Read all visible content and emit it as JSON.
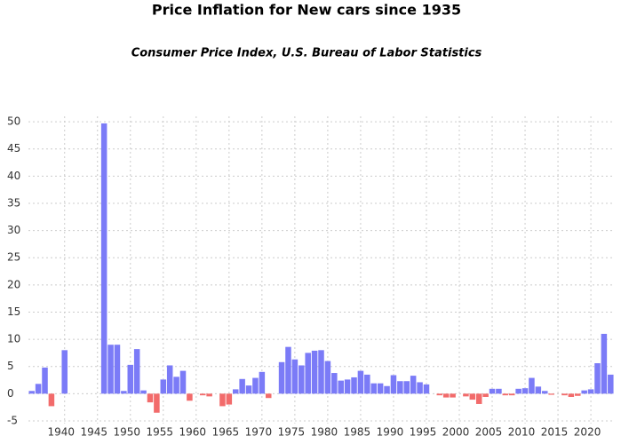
{
  "chart_data": {
    "type": "bar",
    "title": "Price Inflation for New cars since 1935",
    "subtitle": "Consumer Price Index, U.S. Bureau of Labor Statistics",
    "x": [
      1935,
      1936,
      1937,
      1938,
      1939,
      1940,
      1941,
      1942,
      1943,
      1944,
      1945,
      1946,
      1947,
      1948,
      1949,
      1950,
      1951,
      1952,
      1953,
      1954,
      1955,
      1956,
      1957,
      1958,
      1959,
      1960,
      1961,
      1962,
      1963,
      1964,
      1965,
      1966,
      1967,
      1968,
      1969,
      1970,
      1971,
      1972,
      1973,
      1974,
      1975,
      1976,
      1977,
      1978,
      1979,
      1980,
      1981,
      1982,
      1983,
      1984,
      1985,
      1986,
      1987,
      1988,
      1989,
      1990,
      1991,
      1992,
      1993,
      1994,
      1995,
      1996,
      1997,
      1998,
      1999,
      2000,
      2001,
      2002,
      2003,
      2004,
      2005,
      2006,
      2007,
      2008,
      2009,
      2010,
      2011,
      2012,
      2013,
      2014,
      2015,
      2016,
      2017,
      2018,
      2019,
      2020,
      2021,
      2022,
      2023
    ],
    "values": [
      0.5,
      1.8,
      4.8,
      -2.3,
      0,
      8,
      null,
      null,
      null,
      null,
      null,
      49.7,
      9,
      9,
      0.5,
      5.3,
      8.2,
      0.6,
      -1.6,
      -3.5,
      2.6,
      5.2,
      3.1,
      4.2,
      -1.3,
      0,
      -0.3,
      -0.5,
      0,
      -2.3,
      -2,
      0.8,
      2.7,
      1.5,
      2.9,
      4,
      -0.8,
      0,
      5.8,
      8.6,
      6.3,
      5.2,
      7.5,
      7.9,
      8,
      6,
      3.8,
      2.4,
      2.6,
      3,
      4.2,
      3.5,
      1.9,
      1.9,
      1.4,
      3.4,
      2.3,
      2.3,
      3.3,
      2.1,
      1.7,
      0,
      -0.3,
      -0.7,
      -0.7,
      0,
      -0.5,
      -1.1,
      -1.9,
      -0.6,
      0.9,
      0.9,
      -0.3,
      -0.3,
      0.9,
      1,
      2.9,
      1.3,
      0.5,
      -0.2,
      0,
      -0.3,
      -0.6,
      -0.4,
      0.6,
      0.8,
      5.6,
      11,
      3.5
    ],
    "color": "#7b7bf7",
    "negative_color": "#f26b6b",
    "xlim": [
      1934.5,
      2023.5
    ],
    "xticks": [
      1940,
      1945,
      1950,
      1955,
      1960,
      1965,
      1970,
      1975,
      1980,
      1985,
      1990,
      1995,
      2000,
      2005,
      2010,
      2015,
      2020
    ],
    "ylim": [
      -5.5,
      51
    ],
    "yticks": [
      -5,
      0,
      5,
      10,
      15,
      20,
      25,
      30,
      35,
      40,
      45,
      50
    ],
    "grid": true
  }
}
